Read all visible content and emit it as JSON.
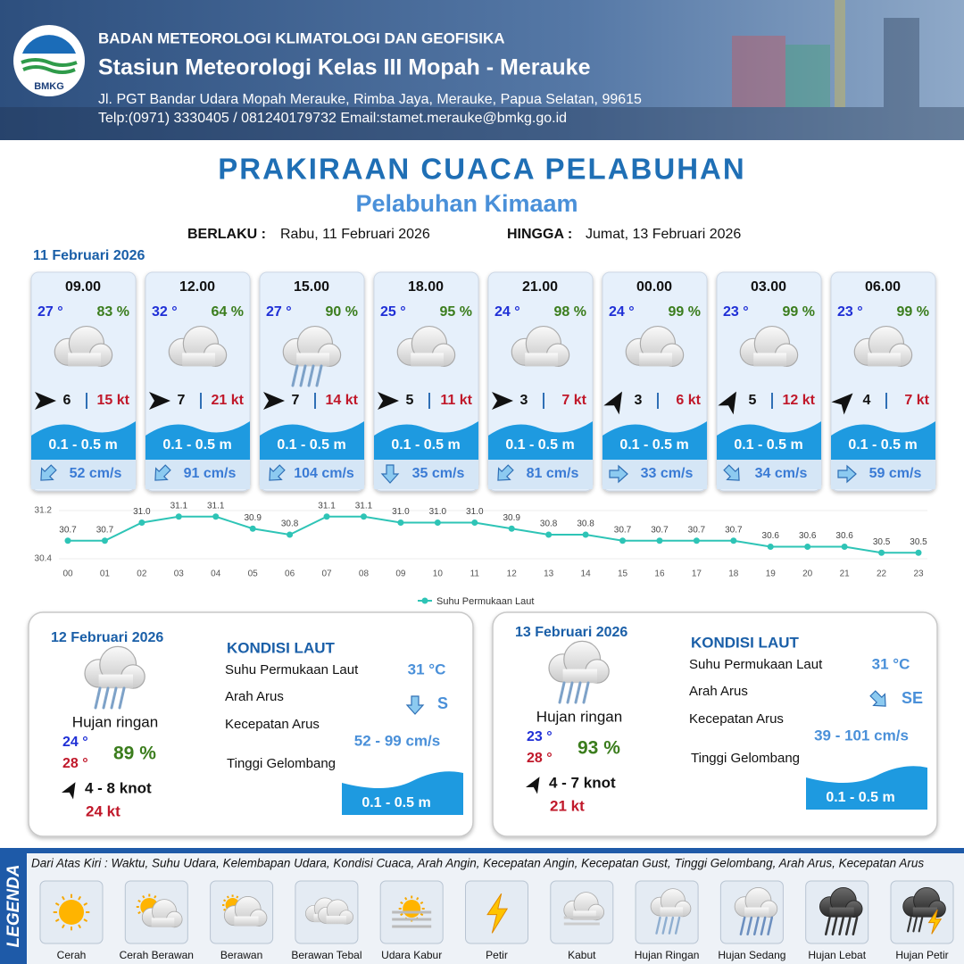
{
  "header": {
    "agency": "BADAN METEOROLOGI KLIMATOLOGI DAN GEOFISIKA",
    "station": "Stasiun Meteorologi Kelas III Mopah - Merauke",
    "address": "Jl. PGT Bandar Udara Mopah Merauke, Rimba Jaya, Merauke, Papua Selatan, 99615",
    "contact": "Telp:(0971) 3330405 / 081240179732  Email:stamet.merauke@bmkg.go.id",
    "logo": "BMKG"
  },
  "title": "PRAKIRAAN CUACA PELABUHAN",
  "subtitle": "Pelabuhan Kimaam",
  "validity": {
    "from_label": "BERLAKU :",
    "from": "Rabu, 11 Februari 2026",
    "to_label": "HINGGA :",
    "to": "Jumat, 13 Februari 2026"
  },
  "today": {
    "date": "11 Februari 2026",
    "slots": [
      {
        "time": "09.00",
        "temp": "27 °",
        "humidity": "83 %",
        "wind": "6",
        "gust": "15 kt",
        "wave": "0.1 - 0.5 m",
        "current": "52 cm/s"
      },
      {
        "time": "12.00",
        "temp": "32 °",
        "humidity": "64 %",
        "wind": "7",
        "gust": "21 kt",
        "wave": "0.1 - 0.5 m",
        "current": "91 cm/s"
      },
      {
        "time": "15.00",
        "temp": "27 °",
        "humidity": "90 %",
        "wind": "7",
        "gust": "14 kt",
        "wave": "0.1 - 0.5 m",
        "current": "104 cm/s"
      },
      {
        "time": "18.00",
        "temp": "25 °",
        "humidity": "95 %",
        "wind": "5",
        "gust": "11 kt",
        "wave": "0.1 - 0.5 m",
        "current": "35 cm/s"
      },
      {
        "time": "21.00",
        "temp": "24 °",
        "humidity": "98 %",
        "wind": "3",
        "gust": "7 kt",
        "wave": "0.1 - 0.5 m",
        "current": "81 cm/s"
      },
      {
        "time": "00.00",
        "temp": "24 °",
        "humidity": "99 %",
        "wind": "3",
        "gust": "6 kt",
        "wave": "0.1 - 0.5 m",
        "current": "33 cm/s"
      },
      {
        "time": "03.00",
        "temp": "23 °",
        "humidity": "99 %",
        "wind": "5",
        "gust": "12 kt",
        "wave": "0.1 - 0.5 m",
        "current": "34 cm/s"
      },
      {
        "time": "06.00",
        "temp": "23 °",
        "humidity": "99 %",
        "wind": "4",
        "gust": "7 kt",
        "wave": "0.1 - 0.5 m",
        "current": "59 cm/s"
      }
    ]
  },
  "chart_data": {
    "type": "line",
    "categories": [
      "00",
      "01",
      "02",
      "03",
      "04",
      "05",
      "06",
      "07",
      "08",
      "09",
      "10",
      "11",
      "12",
      "13",
      "14",
      "15",
      "16",
      "17",
      "18",
      "19",
      "20",
      "21",
      "22",
      "23"
    ],
    "series": [
      {
        "name": "Suhu Permukaan Laut",
        "color": "#2ec4b6",
        "values": [
          30.7,
          30.7,
          31.0,
          31.1,
          31.1,
          30.9,
          30.8,
          31.1,
          31.1,
          31.0,
          31.0,
          31.0,
          30.9,
          30.8,
          30.8,
          30.7,
          30.7,
          30.7,
          30.7,
          30.6,
          30.6,
          30.6,
          30.5,
          30.5
        ],
        "value_labels": [
          "30.7",
          "30.7",
          "31.0",
          "31.1",
          "31.1",
          "30.9",
          "30.8",
          "31.1",
          "31.1",
          "31.0",
          "31.0",
          "31.0",
          "30.9",
          "30.8",
          "30.8",
          "30.7",
          "30.7",
          "30.7",
          "30.7",
          "30.6",
          "30.6",
          "30.6",
          "30.5",
          "30.5"
        ]
      }
    ],
    "ylim": [
      30.4,
      31.2
    ],
    "yticks": [
      30.4,
      31.2
    ],
    "legend": "bottom"
  },
  "days": [
    {
      "date": "12 Februari 2026",
      "condition": "Hujan ringan",
      "temp_min": "24 °",
      "temp_max": "28 °",
      "humidity": "89 %",
      "wind": "4  - 8 knot",
      "gust": "24 kt",
      "sea_title": "KONDISI LAUT",
      "sea_labels": [
        "Suhu Permukaan Laut",
        "Arah Arus",
        "Kecepatan Arus",
        "Tinggi Gelombang"
      ],
      "sst": "31 °C",
      "current_dir": "S",
      "current_speed": "52 - 99 cm/s",
      "wave": "0.1 - 0.5 m"
    },
    {
      "date": "13 Februari 2026",
      "condition": "Hujan ringan",
      "temp_min": "23 °",
      "temp_max": "28 °",
      "humidity": "93 %",
      "wind": "4  - 7 knot",
      "gust": "21 kt",
      "sea_title": "KONDISI LAUT",
      "sea_labels": [
        "Suhu Permukaan Laut",
        "Arah Arus",
        "Kecepatan Arus",
        "Tinggi Gelombang"
      ],
      "sst": "31 °C",
      "current_dir": "SE",
      "current_speed": "39 - 101 cm/s",
      "wave": "0.1 - 0.5 m"
    }
  ],
  "legend": {
    "title": "LEGENDA",
    "description": "Dari Atas Kiri : Waktu, Suhu Udara, Kelembapan Udara, Kondisi Cuaca, Arah Angin, Kecepatan Angin, Kecepatan Gust, Tinggi Gelombang, Arah Arus, Kecepatan Arus",
    "items": [
      "Cerah",
      "Cerah Berawan",
      "Berawan",
      "Berawan Tebal",
      "Udara Kabur",
      "Petir",
      "Kabut",
      "Hujan Ringan",
      "Hujan Sedang",
      "Hujan Lebat",
      "Hujan Petir"
    ]
  }
}
